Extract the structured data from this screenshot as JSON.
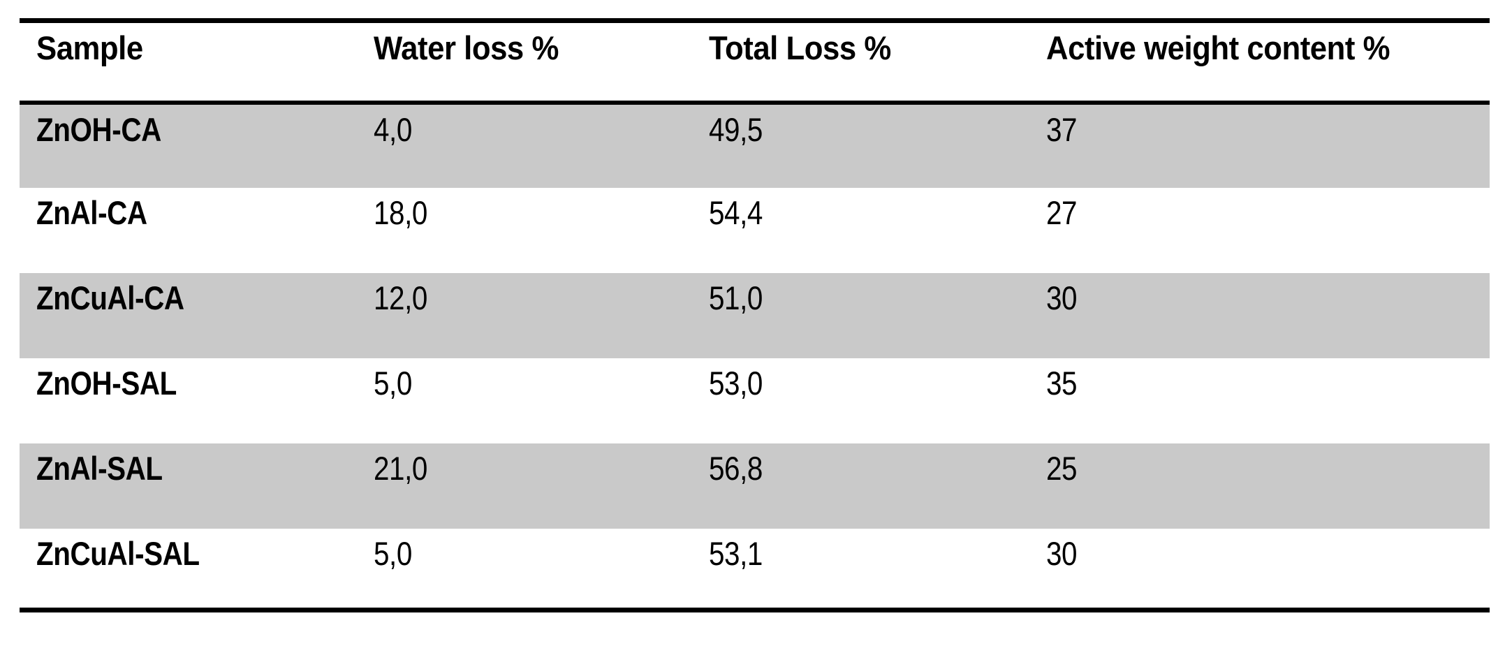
{
  "table": {
    "columns": [
      "Sample",
      "Water loss %",
      "Total Loss %",
      "Active weight content %"
    ],
    "rows": [
      [
        "ZnOH-CA",
        "4,0",
        "49,5",
        "37"
      ],
      [
        "ZnAl-CA",
        "18,0",
        "54,4",
        "27"
      ],
      [
        "ZnCuAl-CA",
        "12,0",
        "51,0",
        "30"
      ],
      [
        "ZnOH-SAL",
        "5,0",
        "53,0",
        "35"
      ],
      [
        "ZnAl-SAL",
        "21,0",
        "56,8",
        "25"
      ],
      [
        "ZnCuAl-SAL",
        "5,0",
        "53,1",
        "30"
      ]
    ],
    "striped_row_indices": [
      0,
      2,
      4
    ],
    "colors": {
      "stripe": "#c9c9c9",
      "border": "#000000",
      "text": "#000000",
      "background": "#ffffff"
    }
  }
}
